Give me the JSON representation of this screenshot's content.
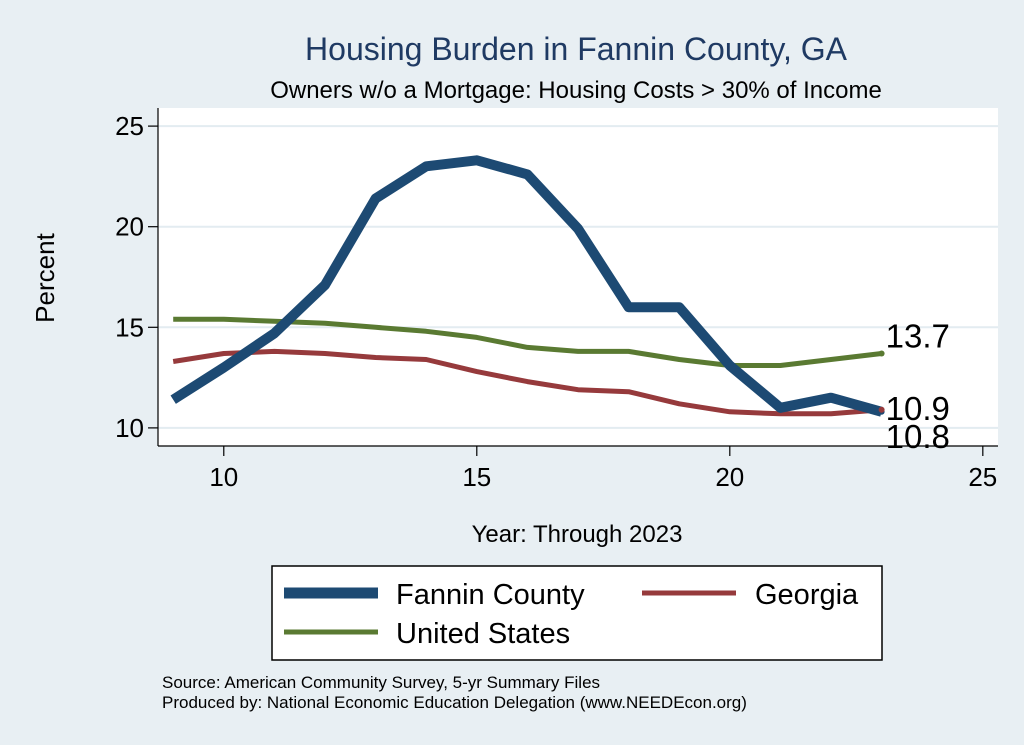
{
  "colors": {
    "background": "#e8eff3",
    "plot_background": "#ffffff",
    "title": "#1f3a63",
    "fannin": "#1d4a73",
    "georgia": "#963a3c",
    "us": "#5a7a32",
    "gridline": "#e3ecf1"
  },
  "chart_data": {
    "type": "line",
    "title": "Housing Burden in Fannin County, GA",
    "subtitle": "Owners w/o a Mortgage: Housing Costs > 30% of Income",
    "xlabel": "Year: Through 2023",
    "ylabel": "Percent",
    "xlim": [
      8.7,
      25.3
    ],
    "ylim": [
      9.1,
      25.9
    ],
    "xticks": [
      10,
      15,
      20,
      25
    ],
    "yticks": [
      10,
      15,
      20,
      25
    ],
    "series": [
      {
        "name": "Fannin County",
        "color_key": "fannin",
        "thick": true,
        "x": [
          9,
          10,
          11,
          12,
          13,
          14,
          15,
          16,
          17,
          18,
          19,
          20,
          21,
          22,
          23
        ],
        "y": [
          11.4,
          13.0,
          14.7,
          17.1,
          21.4,
          23.0,
          23.3,
          22.6,
          19.9,
          16.0,
          16.0,
          13.1,
          11.0,
          11.5,
          10.8
        ],
        "end_label": "10.8"
      },
      {
        "name": "Georgia",
        "color_key": "georgia",
        "thick": false,
        "x": [
          9,
          10,
          11,
          12,
          13,
          14,
          15,
          16,
          17,
          18,
          19,
          20,
          21,
          22,
          23
        ],
        "y": [
          13.3,
          13.7,
          13.8,
          13.7,
          13.5,
          13.4,
          12.8,
          12.3,
          11.9,
          11.8,
          11.2,
          10.8,
          10.7,
          10.7,
          10.9
        ],
        "end_label": "10.9"
      },
      {
        "name": "United States",
        "color_key": "us",
        "thick": false,
        "x": [
          9,
          10,
          11,
          12,
          13,
          14,
          15,
          16,
          17,
          18,
          19,
          20,
          21,
          22,
          23
        ],
        "y": [
          15.4,
          15.4,
          15.3,
          15.2,
          15.0,
          14.8,
          14.5,
          14.0,
          13.8,
          13.8,
          13.4,
          13.1,
          13.1,
          13.4,
          13.7
        ],
        "end_label": "13.7"
      }
    ],
    "legend": [
      "Fannin County",
      "Georgia",
      "United States"
    ],
    "source_lines": [
      "Source: American Community Survey, 5-yr Summary Files",
      "Produced by: National Economic Education Delegation (www.NEEDEcon.org)"
    ]
  }
}
